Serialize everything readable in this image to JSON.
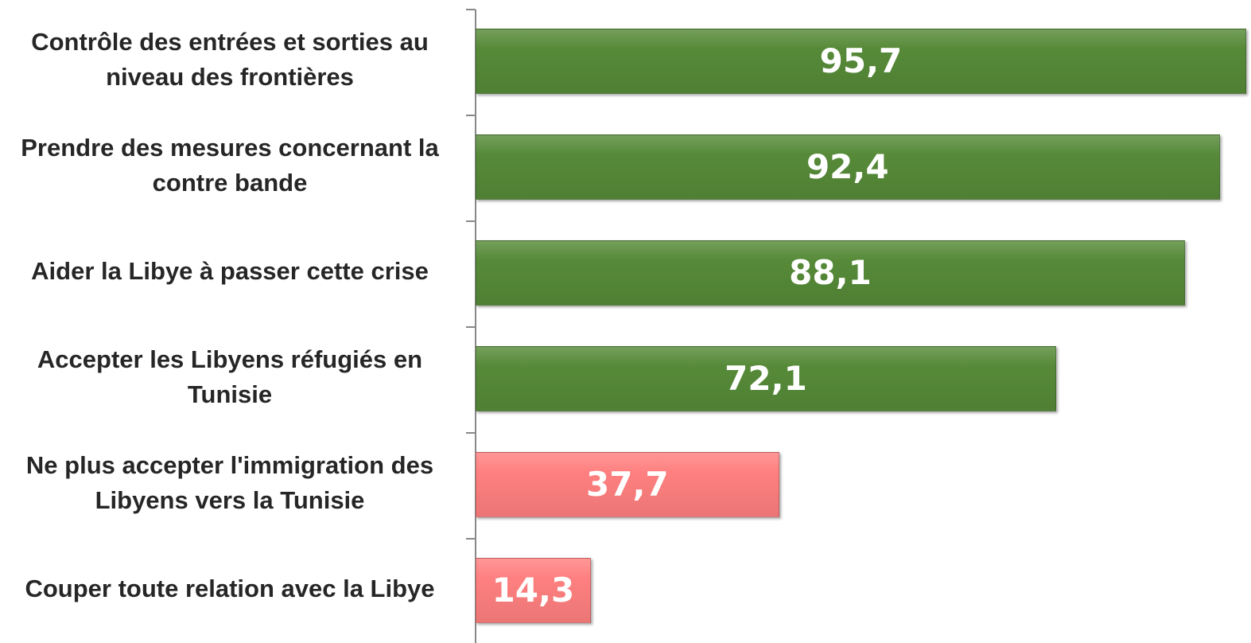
{
  "chart_data": {
    "type": "bar",
    "orientation": "horizontal",
    "categories": [
      "Contrôle des entrées et sorties au niveau des frontières",
      "Prendre des mesures concernant la contre bande",
      "Aider la Libye à passer cette crise",
      "Accepter les Libyens réfugiés en Tunisie",
      "Ne plus accepter l'immigration des Libyens vers la Tunisie",
      "Couper toute relation avec la Libye"
    ],
    "values": [
      95.7,
      92.4,
      88.1,
      72.1,
      37.7,
      14.3
    ],
    "value_labels": [
      "95,7",
      "92,4",
      "88,1",
      "72,1",
      "37,7",
      "14,3"
    ],
    "colors": [
      "#568a38",
      "#568a38",
      "#568a38",
      "#568a38",
      "#ff8080",
      "#ff8080"
    ],
    "xlim": [
      0,
      96
    ]
  }
}
